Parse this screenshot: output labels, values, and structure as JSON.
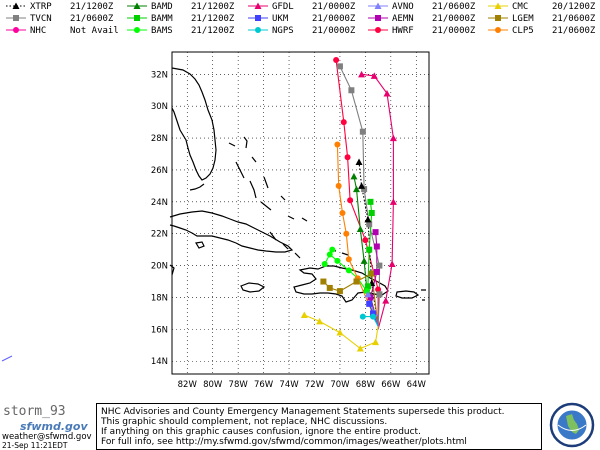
{
  "legend": [
    {
      "id": "xtrp",
      "name": "XTRP",
      "time": "21/1200Z",
      "color": "#000000",
      "marker": "triangle",
      "line": "dotted"
    },
    {
      "id": "tvcn",
      "name": "TVCN",
      "time": "21/0600Z",
      "color": "#808080",
      "marker": "square",
      "line": "solid"
    },
    {
      "id": "nhc",
      "name": "NHC",
      "time": "Not Avail",
      "color": "#ff00a0",
      "marker": "circle",
      "line": "solid"
    },
    {
      "id": "bamd",
      "name": "BAMD",
      "time": "21/1200Z",
      "color": "#008000",
      "marker": "triangle",
      "line": "solid"
    },
    {
      "id": "bamm",
      "name": "BAMM",
      "time": "21/1200Z",
      "color": "#00d000",
      "marker": "square",
      "line": "solid"
    },
    {
      "id": "bams",
      "name": "BAMS",
      "time": "21/1200Z",
      "color": "#00ff00",
      "marker": "circle",
      "line": "solid"
    },
    {
      "id": "gfdl",
      "name": "GFDL",
      "time": "21/0000Z",
      "color": "#e8006e",
      "marker": "triangle",
      "line": "solid"
    },
    {
      "id": "ukm",
      "name": "UKM",
      "time": "21/0000Z",
      "color": "#4040ff",
      "marker": "square",
      "line": "solid"
    },
    {
      "id": "ngps",
      "name": "NGPS",
      "time": "21/0000Z",
      "color": "#00c8d0",
      "marker": "circle",
      "line": "solid"
    },
    {
      "id": "avno",
      "name": "AVNO",
      "time": "21/0600Z",
      "color": "#8080ff",
      "marker": "triangle",
      "line": "solid"
    },
    {
      "id": "aemn",
      "name": "AEMN",
      "time": "21/0000Z",
      "color": "#b000b0",
      "marker": "square",
      "line": "solid"
    },
    {
      "id": "hwrf",
      "name": "HWRF",
      "time": "21/0000Z",
      "color": "#ff0040",
      "marker": "circle",
      "line": "solid"
    },
    {
      "id": "cmc",
      "name": "CMC",
      "time": "20/1200Z",
      "color": "#e8d000",
      "marker": "triangle",
      "line": "solid"
    },
    {
      "id": "lgem",
      "name": "LGEM",
      "time": "21/0600Z",
      "color": "#a08000",
      "marker": "square",
      "line": "solid"
    },
    {
      "id": "clp5",
      "name": "CLP5",
      "time": "21/0600Z",
      "color": "#ff8000",
      "marker": "circle",
      "line": "solid"
    }
  ],
  "map": {
    "lat_labels": [
      "32N",
      "30N",
      "28N",
      "26N",
      "24N",
      "22N",
      "20N",
      "18N",
      "16N",
      "14N"
    ],
    "lon_labels": [
      "82W",
      "80W",
      "78W",
      "76W",
      "74W",
      "72W",
      "70W",
      "68W",
      "66W",
      "64W"
    ],
    "lat_values": [
      32,
      30,
      28,
      26,
      24,
      22,
      20,
      18,
      16,
      14
    ],
    "lon_values": [
      -82,
      -80,
      -78,
      -76,
      -74,
      -72,
      -70,
      -68,
      -66,
      -64
    ],
    "lat_range": [
      13.2,
      33.4
    ],
    "lon_range": [
      -83.2,
      -63.0
    ],
    "tracks": [
      {
        "id": "gfdl",
        "points": [
          [
            -67.0,
            16.0
          ],
          [
            -66.4,
            17.8
          ],
          [
            -65.9,
            20.1
          ],
          [
            -65.8,
            24.0
          ],
          [
            -65.8,
            28.0
          ],
          [
            -66.3,
            30.8
          ],
          [
            -67.3,
            31.9
          ],
          [
            -68.3,
            32.0
          ]
        ]
      },
      {
        "id": "hwrf",
        "points": [
          [
            -67.0,
            16.0
          ],
          [
            -67.0,
            18.5
          ],
          [
            -68.0,
            21.6
          ],
          [
            -69.2,
            24.1
          ],
          [
            -69.4,
            26.8
          ],
          [
            -69.7,
            29.0
          ],
          [
            -70.3,
            32.9
          ]
        ]
      },
      {
        "id": "tvcn",
        "points": [
          [
            -67.0,
            16.0
          ],
          [
            -66.9,
            18.2
          ],
          [
            -66.9,
            20.0
          ],
          [
            -67.7,
            22.6
          ],
          [
            -68.1,
            24.8
          ],
          [
            -68.2,
            28.4
          ],
          [
            -69.1,
            31.0
          ],
          [
            -70.0,
            32.5
          ]
        ]
      },
      {
        "id": "xtrp",
        "points": [
          [
            -67.0,
            16.2
          ],
          [
            -67.5,
            18.9
          ],
          [
            -67.8,
            22.9
          ],
          [
            -68.3,
            25.0
          ],
          [
            -68.5,
            26.5
          ]
        ],
        "markers": [
          [
            -67.5,
            18.9
          ],
          [
            -67.8,
            22.9
          ],
          [
            -68.3,
            25.0
          ],
          [
            -68.5,
            26.5
          ]
        ]
      },
      {
        "id": "bamd",
        "points": [
          [
            -67.0,
            16.2
          ],
          [
            -67.9,
            18.6
          ],
          [
            -68.1,
            20.3
          ],
          [
            -68.4,
            22.3
          ],
          [
            -68.7,
            24.8
          ],
          [
            -68.9,
            25.6
          ]
        ]
      },
      {
        "id": "bamm",
        "points": [
          [
            -67.0,
            16.2
          ],
          [
            -67.8,
            18.7
          ],
          [
            -67.7,
            21.0
          ],
          [
            -67.5,
            23.3
          ],
          [
            -67.6,
            24.0
          ]
        ]
      },
      {
        "id": "bams",
        "points": [
          [
            -67.0,
            16.2
          ],
          [
            -67.9,
            18.4
          ],
          [
            -68.6,
            19.2
          ],
          [
            -69.3,
            19.7
          ],
          [
            -70.2,
            20.3
          ],
          [
            -70.8,
            20.7
          ],
          [
            -71.2,
            20.1
          ],
          [
            -70.6,
            21.0
          ]
        ]
      },
      {
        "id": "clp5",
        "points": [
          [
            -67.0,
            16.2
          ],
          [
            -68.6,
            19.2
          ],
          [
            -69.3,
            20.4
          ],
          [
            -69.5,
            22.0
          ],
          [
            -69.8,
            23.3
          ],
          [
            -70.1,
            25.0
          ],
          [
            -70.2,
            27.6
          ]
        ]
      },
      {
        "id": "lgem",
        "points": [
          [
            -67.0,
            16.2
          ],
          [
            -67.5,
            19.5
          ],
          [
            -68.7,
            19.0
          ],
          [
            -70.0,
            18.4
          ],
          [
            -70.8,
            18.6
          ],
          [
            -71.3,
            19.0
          ]
        ]
      },
      {
        "id": "cmc",
        "points": [
          [
            -67.0,
            16.2
          ],
          [
            -67.2,
            15.2
          ],
          [
            -68.4,
            14.8
          ],
          [
            -70.0,
            15.8
          ],
          [
            -71.6,
            16.5
          ],
          [
            -72.8,
            16.9
          ]
        ]
      },
      {
        "id": "aemn",
        "points": [
          [
            -67.0,
            16.2
          ],
          [
            -67.6,
            18.0
          ],
          [
            -67.1,
            19.6
          ],
          [
            -67.1,
            21.2
          ],
          [
            -67.2,
            22.1
          ]
        ]
      },
      {
        "id": "avno",
        "points": [
          [
            -67.0,
            16.2
          ],
          [
            -67.3,
            17.0
          ],
          [
            -67.8,
            18.2
          ]
        ]
      },
      {
        "id": "ukm",
        "points": [
          [
            -67.0,
            16.2
          ],
          [
            -67.4,
            17.0
          ],
          [
            -67.7,
            17.6
          ]
        ]
      },
      {
        "id": "ngps",
        "points": [
          [
            -67.0,
            16.2
          ],
          [
            -67.4,
            16.8
          ],
          [
            -68.2,
            16.8
          ]
        ]
      },
      {
        "id": "nhc",
        "points": []
      }
    ]
  },
  "footer": {
    "storm_name": "storm_93",
    "logo_text": "sfwmd.gov",
    "email": "weather@sfwmd.gov",
    "timestamp": "21-Sep 11:21EDT",
    "disclaimer_lines": [
      "NHC Advisories and County Emergency Management Statements supersede this product.",
      "This graphic should complement, not replace, NHC discussions.",
      "If anything on this graphic causes confusion, ignore the entire product.",
      "For full info, see  http://my.sfwmd.gov/sfwmd/common/images/weather/plots.html"
    ]
  }
}
